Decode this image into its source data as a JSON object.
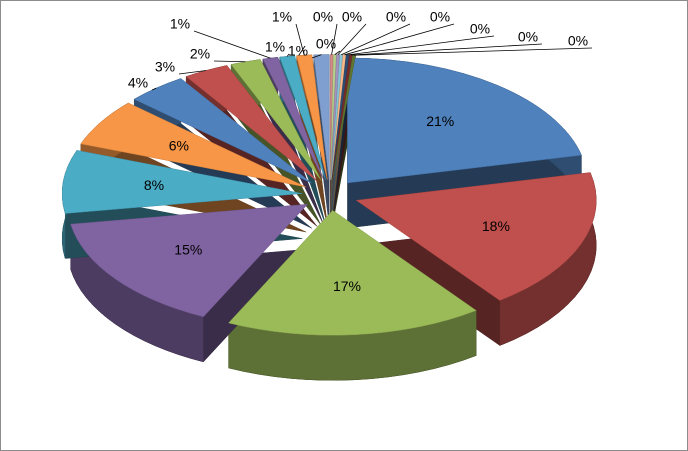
{
  "chart_data": {
    "type": "pie",
    "values": [
      21,
      18,
      17,
      15,
      8,
      6,
      4,
      3,
      2,
      1,
      1,
      1,
      1,
      0,
      0,
      0,
      0,
      0,
      0,
      0,
      0
    ],
    "value_labels": [
      "21%",
      "18%",
      "17%",
      "15%",
      "8%",
      "6%",
      "4%",
      "3%",
      "2%",
      "1%",
      "1%",
      "1%",
      "1%",
      "0%",
      "0%",
      "0%",
      "0%",
      "0%",
      "0%",
      "0%",
      "0%"
    ],
    "colors": [
      "#4f81bd",
      "#c0504d",
      "#9bbb59",
      "#8064a2",
      "#4bacc6",
      "#f79646",
      "#4f81bd",
      "#c0504d",
      "#9bbb59",
      "#8064a2",
      "#4bacc6",
      "#f79646",
      "#7f9fd0",
      "#d38b89",
      "#b7cf8c",
      "#a493bf",
      "#85c6d8",
      "#f9b987",
      "#2c4d75",
      "#772c2a",
      "#5f7530"
    ]
  }
}
